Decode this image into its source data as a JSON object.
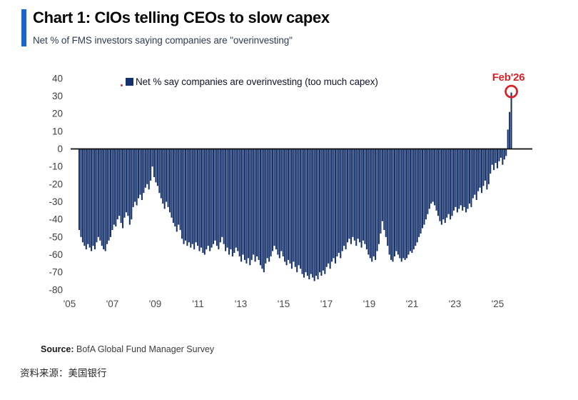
{
  "header": {
    "title": "Chart 1: CIOs telling CEOs to slow capex",
    "subtitle": "Net % of FMS investors saying companies are \"overinvesting\"",
    "accent_color": "#1565d0"
  },
  "legend": {
    "label": "Net % say companies are overinvesting (too much capex)",
    "swatch_color": "#15316b"
  },
  "annotation": {
    "label": "Feb'26",
    "value": 32,
    "color": "#d62329"
  },
  "footer": {
    "source_label": "Source:",
    "source_text": " BofA Global Fund Manager Survey",
    "source_cn": "资料来源：美国银行"
  },
  "chart_data": {
    "type": "bar",
    "title": "Chart 1: CIOs telling CEOs to slow capex",
    "subtitle": "Net % of FMS investors saying companies are \"overinvesting\"",
    "frequency": "monthly",
    "start": "2005-06",
    "end": "2026-02",
    "bar_color": "#15316b",
    "zero_line_color": "#111111",
    "grid": false,
    "legend_position": "top",
    "ylim": [
      -80,
      40
    ],
    "y_ticks": [
      40,
      30,
      20,
      10,
      0,
      -10,
      -20,
      -30,
      -40,
      -50,
      -60,
      -70,
      -80
    ],
    "x_tick_labels": [
      "'05",
      "'07",
      "'09",
      "'11",
      "'13",
      "'15",
      "'17",
      "'19",
      "'21",
      "'23",
      "'25"
    ],
    "last_point": {
      "label": "Feb'26",
      "value": 32
    },
    "values": [
      -46,
      -50,
      -53,
      -55,
      -57,
      -54,
      -56,
      -58,
      -55,
      -57,
      -53,
      -50,
      -52,
      -55,
      -57,
      -58,
      -54,
      -52,
      -50,
      -46,
      -43,
      -44,
      -40,
      -38,
      -42,
      -45,
      -39,
      -36,
      -38,
      -43,
      -40,
      -33,
      -30,
      -32,
      -28,
      -26,
      -29,
      -25,
      -22,
      -20,
      -23,
      -18,
      -10,
      -16,
      -19,
      -21,
      -25,
      -28,
      -31,
      -34,
      -30,
      -33,
      -36,
      -39,
      -42,
      -44,
      -47,
      -43,
      -46,
      -51,
      -54,
      -52,
      -55,
      -53,
      -56,
      -54,
      -57,
      -53,
      -55,
      -58,
      -56,
      -59,
      -60,
      -57,
      -55,
      -58,
      -56,
      -54,
      -52,
      -55,
      -57,
      -53,
      -50,
      -54,
      -58,
      -56,
      -60,
      -57,
      -61,
      -59,
      -56,
      -58,
      -61,
      -64,
      -60,
      -63,
      -65,
      -62,
      -66,
      -63,
      -60,
      -64,
      -61,
      -63,
      -66,
      -68,
      -70,
      -65,
      -62,
      -64,
      -61,
      -58,
      -55,
      -57,
      -60,
      -62,
      -58,
      -61,
      -64,
      -66,
      -63,
      -65,
      -68,
      -64,
      -67,
      -70,
      -66,
      -68,
      -71,
      -73,
      -70,
      -72,
      -74,
      -71,
      -73,
      -75,
      -72,
      -74,
      -70,
      -72,
      -69,
      -71,
      -67,
      -65,
      -68,
      -64,
      -62,
      -65,
      -61,
      -59,
      -62,
      -58,
      -55,
      -57,
      -53,
      -51,
      -54,
      -50,
      -52,
      -55,
      -51,
      -53,
      -56,
      -52,
      -54,
      -57,
      -60,
      -62,
      -64,
      -61,
      -63,
      -58,
      -54,
      -48,
      -41,
      -46,
      -50,
      -55,
      -60,
      -63,
      -64,
      -61,
      -58,
      -60,
      -62,
      -64,
      -62,
      -63,
      -62,
      -60,
      -58,
      -59,
      -57,
      -55,
      -53,
      -50,
      -48,
      -45,
      -43,
      -40,
      -37,
      -34,
      -31,
      -30,
      -32,
      -35,
      -38,
      -41,
      -43,
      -40,
      -42,
      -39,
      -37,
      -40,
      -38,
      -35,
      -33,
      -36,
      -34,
      -32,
      -35,
      -33,
      -36,
      -34,
      -31,
      -33,
      -28,
      -26,
      -29,
      -24,
      -22,
      -25,
      -21,
      -18,
      -23,
      -20,
      -14,
      -9,
      -12,
      -8,
      -11,
      -7,
      -5,
      -9,
      -6,
      -4,
      11,
      21,
      32
    ]
  }
}
